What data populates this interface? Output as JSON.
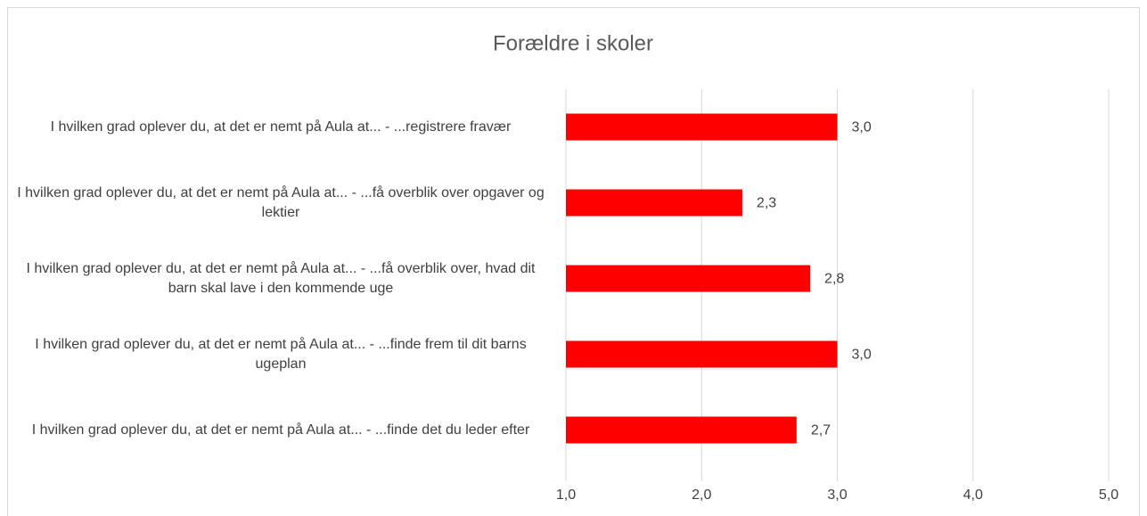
{
  "chart_data": {
    "type": "barh",
    "title": "Forældre i skoler",
    "categories": [
      "I hvilken grad oplever du, at det er nemt på Aula at... - ...registrere fravær",
      "I hvilken grad oplever du, at det er nemt på Aula at... - ...få overblik over opgaver og lektier",
      "I hvilken grad oplever du, at det er nemt på Aula at... - ...få overblik over, hvad dit barn skal lave i den kommende uge",
      "I hvilken grad oplever du, at det er nemt på Aula at... - ...finde frem til dit barns ugeplan",
      "I hvilken grad oplever du, at det er nemt på Aula at... - ...finde det du leder efter"
    ],
    "values": [
      3.0,
      2.3,
      2.8,
      3.0,
      2.7
    ],
    "value_labels": [
      "3,0",
      "2,3",
      "2,8",
      "3,0",
      "2,7"
    ],
    "color": "#ff0000",
    "xlim": [
      1,
      5
    ],
    "xticks": [
      {
        "value": 1,
        "label": "1,0"
      },
      {
        "value": 2,
        "label": "2,0"
      },
      {
        "value": 3,
        "label": "3,0"
      },
      {
        "value": 4,
        "label": "4,0"
      },
      {
        "value": 5,
        "label": "5,0"
      }
    ],
    "grid": true
  }
}
